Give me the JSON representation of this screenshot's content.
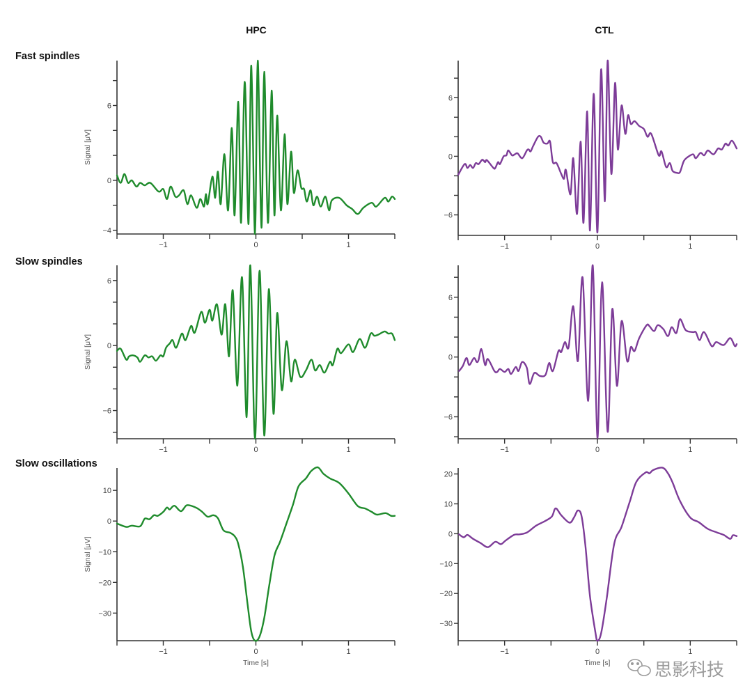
{
  "columns": [
    "HPC",
    "CTL"
  ],
  "rows": [
    "Fast spindles",
    "Slow spindles",
    "Slow oscillations"
  ],
  "colors": {
    "HPC": "#1f8b2c",
    "CTL": "#7d3c98",
    "axis": "#333333"
  },
  "watermark": {
    "text": "思影科技",
    "icon": "wechat-icon"
  },
  "chart_data": [
    {
      "type": "line",
      "row": "Fast spindles",
      "column": "HPC",
      "color": "#1f8b2c",
      "xlabel": "",
      "ylabel": "Signal [μV]",
      "xlim": [
        -1.5,
        1.5
      ],
      "ylim": [
        -4.3,
        9.6
      ],
      "xticks": [
        -1.5,
        -1,
        -0.5,
        0,
        0.5,
        1,
        1.5
      ],
      "xtick_labels": {
        "values": [
          -1,
          0,
          1
        ],
        "text": [
          "−1",
          "0",
          "1"
        ]
      },
      "yticks": [
        -4,
        -2,
        0,
        2,
        4,
        6,
        8
      ],
      "ytick_labels": {
        "values": [
          -4,
          0,
          6
        ],
        "text": [
          "−4",
          "0",
          "6"
        ]
      },
      "t": [
        -1.5,
        -1.46,
        -1.42,
        -1.38,
        -1.34,
        -1.29,
        -1.25,
        -1.2,
        -1.14,
        -1.05,
        -1.0,
        -0.96,
        -0.92,
        -0.87,
        -0.83,
        -0.78,
        -0.74,
        -0.7,
        -0.64,
        -0.6,
        -0.56,
        -0.54,
        -0.52,
        -0.47,
        -0.44,
        -0.41,
        -0.38,
        -0.34,
        -0.3,
        -0.26,
        -0.23,
        -0.19,
        -0.16,
        -0.12,
        -0.08,
        -0.05,
        -0.01,
        0.02,
        0.06,
        0.09,
        0.13,
        0.17,
        0.2,
        0.23,
        0.27,
        0.31,
        0.34,
        0.38,
        0.41,
        0.45,
        0.49,
        0.52,
        0.55,
        0.59,
        0.62,
        0.66,
        0.7,
        0.75,
        0.79,
        0.82,
        0.9,
        0.98,
        1.04,
        1.1,
        1.16,
        1.25,
        1.3,
        1.39,
        1.43,
        1.47,
        1.5
      ],
      "v": [
        0.4,
        -0.2,
        0.5,
        -0.2,
        0.0,
        -0.5,
        -0.2,
        -0.4,
        -0.2,
        -0.9,
        -0.7,
        -1.5,
        -0.5,
        -1.3,
        -1.2,
        -0.8,
        -1.9,
        -1.2,
        -2.2,
        -1.5,
        -2.1,
        -1.1,
        -1.9,
        0.3,
        -1.4,
        0.7,
        -1.9,
        2.1,
        -2.4,
        4.2,
        -2.8,
        6.3,
        -3.4,
        7.9,
        -3.5,
        9.2,
        -4.3,
        9.6,
        -3.8,
        8.7,
        -3.4,
        7.2,
        -2.8,
        5.2,
        -2.4,
        3.7,
        -1.9,
        2.3,
        -1.0,
        0.8,
        -0.6,
        -0.7,
        -1.7,
        -0.8,
        -2.0,
        -1.3,
        -2.1,
        -1.3,
        -2.4,
        -1.6,
        -1.4,
        -2.0,
        -2.3,
        -2.7,
        -2.2,
        -1.8,
        -2.1,
        -1.4,
        -1.7,
        -1.3,
        -1.5
      ]
    },
    {
      "type": "line",
      "row": "Fast spindles",
      "column": "CTL",
      "color": "#7d3c98",
      "xlabel": "",
      "ylabel": "",
      "xlim": [
        -1.5,
        1.5
      ],
      "ylim": [
        -8.1,
        9.8
      ],
      "xticks": [
        -1.5,
        -1,
        -0.5,
        0,
        0.5,
        1,
        1.5
      ],
      "xtick_labels": {
        "values": [
          -1,
          0,
          1
        ],
        "text": [
          "−1",
          "0",
          "1"
        ]
      },
      "yticks": [
        -6,
        -4,
        -2,
        0,
        2,
        4,
        6,
        8
      ],
      "ytick_labels": {
        "values": [
          -6,
          0,
          6
        ],
        "text": [
          "−6",
          "0",
          "6"
        ]
      },
      "t": [
        -1.5,
        -1.43,
        -1.4,
        -1.37,
        -1.34,
        -1.31,
        -1.28,
        -1.24,
        -1.21,
        -1.19,
        -1.12,
        -1.1,
        -1.07,
        -1.05,
        -1.01,
        -0.98,
        -0.96,
        -0.92,
        -0.89,
        -0.86,
        -0.81,
        -0.76,
        -0.74,
        -0.72,
        -0.69,
        -0.64,
        -0.61,
        -0.58,
        -0.54,
        -0.51,
        -0.48,
        -0.44,
        -0.39,
        -0.36,
        -0.34,
        -0.29,
        -0.26,
        -0.22,
        -0.18,
        -0.15,
        -0.11,
        -0.08,
        -0.04,
        0.0,
        0.04,
        0.08,
        0.11,
        0.15,
        0.19,
        0.22,
        0.26,
        0.3,
        0.33,
        0.36,
        0.4,
        0.45,
        0.5,
        0.54,
        0.58,
        0.66,
        0.69,
        0.74,
        0.78,
        0.81,
        0.86,
        0.89,
        0.93,
        0.97,
        1.03,
        1.06,
        1.11,
        1.15,
        1.19,
        1.25,
        1.3,
        1.34,
        1.38,
        1.41,
        1.45,
        1.5
      ],
      "v": [
        -1.9,
        -0.8,
        -1.2,
        -0.9,
        -1.2,
        -0.7,
        -0.8,
        -0.35,
        -0.6,
        -0.4,
        -1.2,
        -1.2,
        -0.6,
        -0.8,
        0.0,
        0.1,
        0.6,
        0.1,
        0.2,
        0.3,
        -0.2,
        0.6,
        0.7,
        0.5,
        1.1,
        2.0,
        2.0,
        1.4,
        1.3,
        1.5,
        -0.6,
        -0.7,
        -1.8,
        -2.3,
        -1.4,
        -3.9,
        -0.2,
        -5.9,
        1.5,
        -6.8,
        4.6,
        -7.6,
        6.4,
        -7.8,
        8.9,
        -4.6,
        9.8,
        -1.8,
        7.5,
        0.7,
        5.2,
        2.3,
        4.2,
        3.3,
        3.6,
        3.1,
        2.8,
        2.0,
        2.3,
        0.1,
        0.5,
        -1.1,
        -0.7,
        -1.5,
        -1.7,
        -1.6,
        -0.5,
        -0.1,
        0.2,
        -0.2,
        0.35,
        0.1,
        0.6,
        0.2,
        0.8,
        0.7,
        1.3,
        1.1,
        1.6,
        0.8
      ]
    },
    {
      "type": "line",
      "row": "Slow spindles",
      "column": "HPC",
      "color": "#1f8b2c",
      "xlabel": "",
      "ylabel": "Signal [μV]",
      "xlim": [
        -1.5,
        1.5
      ],
      "ylim": [
        -8.6,
        7.4
      ],
      "xticks": [
        -1.5,
        -1,
        -0.5,
        0,
        0.5,
        1,
        1.5
      ],
      "xtick_labels": {
        "values": [
          -1,
          0,
          1
        ],
        "text": [
          "−1",
          "0",
          "1"
        ]
      },
      "yticks": [
        -8,
        -6,
        -4,
        -2,
        0,
        2,
        4,
        6
      ],
      "ytick_labels": {
        "values": [
          -6,
          0,
          6
        ],
        "text": [
          "−6",
          "0",
          "6"
        ]
      },
      "t": [
        -1.5,
        -1.46,
        -1.4,
        -1.37,
        -1.33,
        -1.28,
        -1.25,
        -1.2,
        -1.16,
        -1.12,
        -1.08,
        -1.03,
        -1.0,
        -0.97,
        -0.93,
        -0.9,
        -0.86,
        -0.8,
        -0.76,
        -0.7,
        -0.66,
        -0.59,
        -0.55,
        -0.5,
        -0.47,
        -0.42,
        -0.37,
        -0.33,
        -0.29,
        -0.25,
        -0.2,
        -0.15,
        -0.1,
        -0.06,
        -0.01,
        0.04,
        0.09,
        0.14,
        0.19,
        0.23,
        0.28,
        0.33,
        0.38,
        0.42,
        0.48,
        0.54,
        0.6,
        0.64,
        0.69,
        0.74,
        0.8,
        0.83,
        0.88,
        0.92,
        1.0,
        1.05,
        1.12,
        1.18,
        1.24,
        1.28,
        1.32,
        1.39,
        1.43,
        1.47,
        1.5
      ],
      "v": [
        -0.5,
        -0.3,
        -1.3,
        -1.0,
        -0.9,
        -1.1,
        -1.5,
        -0.9,
        -1.1,
        -1.0,
        -1.4,
        -0.9,
        -1.0,
        -0.2,
        0.2,
        0.5,
        -0.2,
        1.1,
        0.5,
        1.8,
        1.2,
        3.1,
        2.1,
        3.3,
        2.3,
        3.8,
        1.0,
        3.8,
        -1.0,
        5.1,
        -3.7,
        6.3,
        -6.6,
        7.4,
        -8.6,
        6.9,
        -8.3,
        5.2,
        -6.3,
        3.0,
        -4.1,
        0.4,
        -3.3,
        -1.3,
        -2.9,
        -2.3,
        -1.3,
        -2.3,
        -1.8,
        -2.5,
        -1.5,
        -1.8,
        -0.3,
        -0.7,
        0.1,
        -0.6,
        0.6,
        -0.2,
        1.1,
        0.9,
        1.0,
        1.3,
        1.1,
        1.1,
        0.5
      ]
    },
    {
      "type": "line",
      "row": "Slow spindles",
      "column": "CTL",
      "color": "#7d3c98",
      "xlabel": "",
      "ylabel": "",
      "xlim": [
        -1.5,
        1.5
      ],
      "ylim": [
        -8.2,
        9.2
      ],
      "xticks": [
        -1.5,
        -1,
        -0.5,
        0,
        0.5,
        1,
        1.5
      ],
      "xtick_labels": {
        "values": [
          -1,
          0,
          1
        ],
        "text": [
          "−1",
          "0",
          "1"
        ]
      },
      "yticks": [
        -8,
        -6,
        -4,
        -2,
        0,
        2,
        4,
        6,
        8
      ],
      "ytick_labels": {
        "values": [
          -6,
          0,
          6
        ],
        "text": [
          "−6",
          "0",
          "6"
        ]
      },
      "t": [
        -1.49,
        -1.45,
        -1.41,
        -1.38,
        -1.33,
        -1.3,
        -1.28,
        -1.25,
        -1.21,
        -1.18,
        -1.11,
        -1.08,
        -1.05,
        -1.0,
        -0.96,
        -0.93,
        -0.88,
        -0.85,
        -0.81,
        -0.76,
        -0.73,
        -0.68,
        -0.62,
        -0.56,
        -0.52,
        -0.48,
        -0.42,
        -0.39,
        -0.35,
        -0.31,
        -0.26,
        -0.21,
        -0.16,
        -0.1,
        -0.05,
        0.0,
        0.05,
        0.11,
        0.16,
        0.21,
        0.26,
        0.32,
        0.36,
        0.4,
        0.45,
        0.53,
        0.56,
        0.61,
        0.65,
        0.71,
        0.76,
        0.8,
        0.85,
        0.89,
        0.95,
        1.03,
        1.06,
        1.1,
        1.15,
        1.23,
        1.28,
        1.36,
        1.43,
        1.48,
        1.5
      ],
      "v": [
        -1.4,
        -0.9,
        -0.1,
        -0.8,
        -0.1,
        -0.5,
        -0.3,
        0.8,
        -0.8,
        -0.2,
        -1.4,
        -1.5,
        -1.2,
        -1.5,
        -1.2,
        -1.7,
        -1.0,
        -1.4,
        -0.5,
        -1.1,
        -2.7,
        -1.6,
        -1.9,
        -1.8,
        -0.6,
        -1.4,
        0.6,
        0.5,
        1.5,
        1.0,
        5.1,
        -0.4,
        8.0,
        -4.4,
        9.2,
        -8.1,
        7.5,
        -7.5,
        4.8,
        -2.9,
        3.6,
        -0.4,
        1.0,
        0.6,
        1.9,
        3.2,
        3.1,
        2.6,
        3.2,
        2.8,
        2.1,
        3.0,
        2.4,
        3.8,
        2.7,
        2.5,
        2.5,
        1.7,
        2.5,
        1.1,
        1.5,
        1.2,
        1.9,
        1.1,
        1.3
      ]
    },
    {
      "type": "line",
      "row": "Slow oscillations",
      "column": "HPC",
      "color": "#1f8b2c",
      "xlabel": "Time [s]",
      "ylabel": "Signal [μV]",
      "xlim": [
        -1.5,
        1.5
      ],
      "ylim": [
        -39,
        17.3
      ],
      "xticks": [
        -1.5,
        -1,
        -0.5,
        0,
        0.5,
        1,
        1.5
      ],
      "xtick_labels": {
        "values": [
          -1,
          0,
          1
        ],
        "text": [
          "−1",
          "0",
          "1"
        ]
      },
      "yticks": [
        -30,
        -20,
        -10,
        0,
        10
      ],
      "ytick_labels": {
        "values": [
          -30,
          -20,
          -10,
          0,
          10
        ],
        "text": [
          "−30",
          "−20",
          "−10",
          "0",
          "10"
        ]
      },
      "t": [
        -1.5,
        -1.4,
        -1.34,
        -1.25,
        -1.2,
        -1.15,
        -1.1,
        -1.06,
        -1.0,
        -0.96,
        -0.93,
        -0.88,
        -0.81,
        -0.75,
        -0.69,
        -0.63,
        -0.58,
        -0.52,
        -0.46,
        -0.41,
        -0.35,
        -0.28,
        -0.23,
        -0.19,
        -0.14,
        -0.09,
        -0.05,
        -0.01,
        0.04,
        0.09,
        0.14,
        0.2,
        0.26,
        0.33,
        0.4,
        0.46,
        0.54,
        0.6,
        0.67,
        0.73,
        0.8,
        0.9,
        1.0,
        1.1,
        1.18,
        1.25,
        1.31,
        1.4,
        1.46,
        1.5
      ],
      "v": [
        -0.8,
        -1.9,
        -1.5,
        -1.7,
        0.8,
        0.6,
        1.9,
        1.7,
        3.0,
        4.4,
        3.8,
        5.0,
        3.2,
        5.1,
        4.9,
        4.1,
        3.0,
        1.4,
        1.9,
        0.9,
        -3.0,
        -3.8,
        -4.9,
        -7.5,
        -15,
        -27,
        -36,
        -39,
        -37.6,
        -31.6,
        -21.8,
        -11.3,
        -6.8,
        -0.8,
        5.3,
        11.3,
        13.9,
        16.4,
        17.5,
        15.4,
        13.9,
        12.4,
        9.0,
        4.9,
        4.1,
        3.0,
        2.1,
        2.6,
        1.7,
        1.7
      ]
    },
    {
      "type": "line",
      "row": "Slow oscillations",
      "column": "CTL",
      "color": "#7d3c98",
      "xlabel": "Time [s]",
      "ylabel": "",
      "xlim": [
        -1.5,
        1.5
      ],
      "ylim": [
        -35.8,
        22
      ],
      "xticks": [
        -1.5,
        -1,
        -0.5,
        0,
        0.5,
        1,
        1.5
      ],
      "xtick_labels": {
        "values": [
          -1,
          0,
          1
        ],
        "text": [
          "−1",
          "0",
          "1"
        ]
      },
      "yticks": [
        -30,
        -20,
        -10,
        0,
        10,
        20
      ],
      "ytick_labels": {
        "values": [
          -30,
          -20,
          -10,
          0,
          10,
          20
        ],
        "text": [
          "−30",
          "−20",
          "−10",
          "0",
          "10",
          "20"
        ]
      },
      "t": [
        -1.49,
        -1.44,
        -1.4,
        -1.34,
        -1.26,
        -1.18,
        -1.1,
        -1.04,
        -0.99,
        -0.9,
        -0.84,
        -0.76,
        -0.66,
        -0.56,
        -0.49,
        -0.45,
        -0.39,
        -0.3,
        -0.25,
        -0.21,
        -0.17,
        -0.13,
        -0.08,
        -0.02,
        0.0,
        0.04,
        0.1,
        0.18,
        0.26,
        0.35,
        0.42,
        0.52,
        0.56,
        0.6,
        0.7,
        0.76,
        0.81,
        0.89,
        1.0,
        1.09,
        1.19,
        1.29,
        1.36,
        1.43,
        1.46,
        1.5
      ],
      "v": [
        -0.2,
        -1.2,
        -0.4,
        -1.7,
        -3.1,
        -4.5,
        -2.7,
        -3.5,
        -2.3,
        -0.4,
        -0.2,
        0.4,
        2.7,
        4.3,
        5.8,
        8.5,
        6.2,
        3.7,
        5.6,
        7.8,
        5.8,
        -3.9,
        -20.9,
        -33.3,
        -35.8,
        -33.3,
        -21.7,
        -3.5,
        2.3,
        10.9,
        17.4,
        20.5,
        20.2,
        21.3,
        22.1,
        20.2,
        17.1,
        10.9,
        5.4,
        3.9,
        1.6,
        0.4,
        -0.4,
        -1.7,
        -0.5,
        -0.8
      ]
    }
  ]
}
